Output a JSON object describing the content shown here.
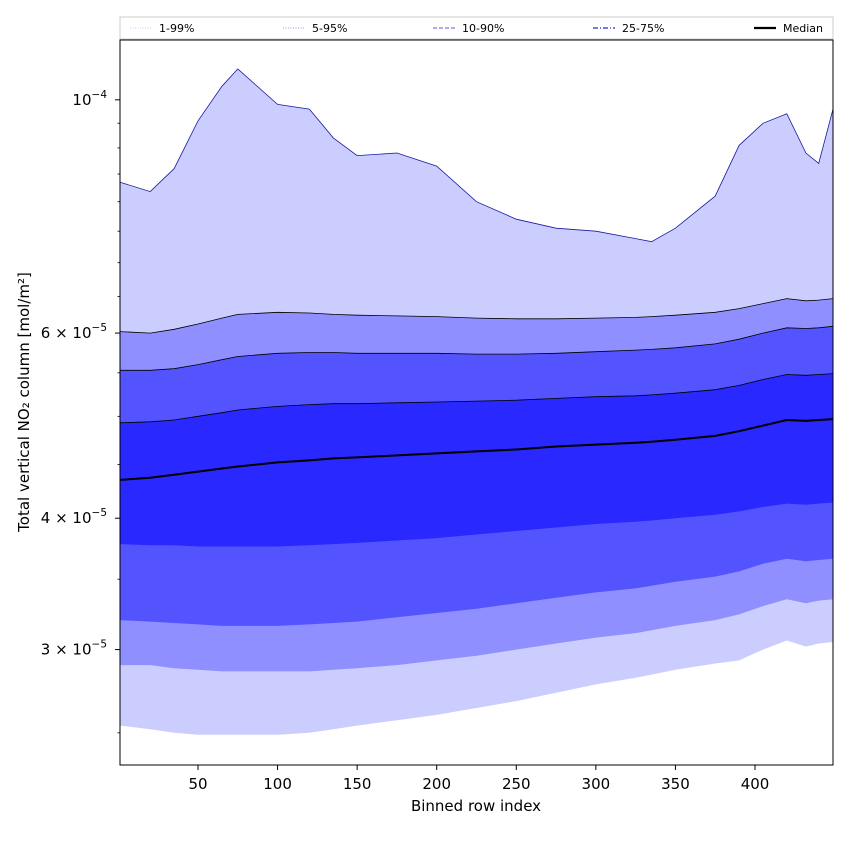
{
  "chart_data": {
    "type": "area",
    "xlabel": "Binned row index",
    "ylabel": "Total vertical NO₂ column [mol/m²]",
    "yscale": "log",
    "xlim": [
      1,
      449
    ],
    "ylim": [
      2.33e-05,
      0.000114
    ],
    "grid": false,
    "legend_position": "top (horizontal strip above plot)",
    "x_tick_labels": [
      "50",
      "100",
      "150",
      "200",
      "250",
      "300",
      "350",
      "400"
    ],
    "x_ticks": [
      50,
      100,
      150,
      200,
      250,
      300,
      350,
      400
    ],
    "y_tick_labels": [
      {
        "value": 0.0001,
        "base": "10",
        "exp": "−4"
      },
      {
        "value": 6e-05,
        "base": "6 × 10",
        "exp": "−5"
      },
      {
        "value": 4e-05,
        "base": "4 × 10",
        "exp": "−5"
      },
      {
        "value": 3e-05,
        "base": "3 × 10",
        "exp": "−5"
      }
    ],
    "legend": [
      {
        "label": "1-99%",
        "style": "dotted",
        "color": "#c8c8f0"
      },
      {
        "label": "5-95%",
        "style": "dotted",
        "color": "#9a9ae0"
      },
      {
        "label": "10-90%",
        "style": "dashed",
        "color": "#7a7ae8"
      },
      {
        "label": "25-75%",
        "style": "dashdot",
        "color": "#4a4ae0"
      },
      {
        "label": "Median",
        "style": "solid",
        "color": "#000000"
      }
    ],
    "band_colors": {
      "p1_99": "#cccdff",
      "p5_95": "#8f8fff",
      "p10_90": "#5454ff",
      "p25_75": "#2828ff",
      "median": "#000000",
      "upper_edge": "#1a1aa0"
    },
    "x": [
      1,
      20,
      35,
      50,
      65,
      75,
      100,
      120,
      135,
      150,
      175,
      200,
      225,
      250,
      275,
      300,
      325,
      335,
      350,
      375,
      390,
      405,
      420,
      432,
      440,
      449
    ],
    "series": [
      {
        "name": "1-99%",
        "lower": [
          2.54e-05,
          2.52e-05,
          2.5e-05,
          2.49e-05,
          2.49e-05,
          2.49e-05,
          2.49e-05,
          2.5e-05,
          2.52e-05,
          2.54e-05,
          2.57e-05,
          2.6e-05,
          2.64e-05,
          2.68e-05,
          2.73e-05,
          2.78e-05,
          2.82e-05,
          2.84e-05,
          2.87e-05,
          2.91e-05,
          2.93e-05,
          3e-05,
          3.06e-05,
          3.02e-05,
          3.04e-05,
          3.05e-05
        ],
        "upper": [
          8.35e-05,
          8.18e-05,
          8.6e-05,
          9.55e-05,
          0.000103,
          0.000107,
          9.9e-05,
          9.8e-05,
          9.2e-05,
          8.85e-05,
          8.9e-05,
          8.65e-05,
          8e-05,
          7.7e-05,
          7.55e-05,
          7.5e-05,
          7.38e-05,
          7.33e-05,
          7.55e-05,
          8.1e-05,
          9.05e-05,
          9.5e-05,
          9.7e-05,
          8.9e-05,
          8.7e-05,
          9.8e-05
        ]
      },
      {
        "name": "5-95%",
        "lower": [
          2.9e-05,
          2.9e-05,
          2.88e-05,
          2.87e-05,
          2.86e-05,
          2.86e-05,
          2.86e-05,
          2.86e-05,
          2.87e-05,
          2.88e-05,
          2.9e-05,
          2.93e-05,
          2.96e-05,
          3e-05,
          3.04e-05,
          3.08e-05,
          3.11e-05,
          3.13e-05,
          3.16e-05,
          3.2e-05,
          3.24e-05,
          3.3e-05,
          3.35e-05,
          3.32e-05,
          3.34e-05,
          3.35e-05
        ],
        "upper": [
          6.02e-05,
          6e-05,
          6.05e-05,
          6.12e-05,
          6.2e-05,
          6.25e-05,
          6.28e-05,
          6.27e-05,
          6.25e-05,
          6.24e-05,
          6.23e-05,
          6.22e-05,
          6.2e-05,
          6.19e-05,
          6.19e-05,
          6.2e-05,
          6.21e-05,
          6.22e-05,
          6.24e-05,
          6.28e-05,
          6.33e-05,
          6.4e-05,
          6.47e-05,
          6.44e-05,
          6.45e-05,
          6.47e-05
        ]
      },
      {
        "name": "10-90%",
        "lower": [
          3.2e-05,
          3.19e-05,
          3.18e-05,
          3.17e-05,
          3.16e-05,
          3.16e-05,
          3.16e-05,
          3.17e-05,
          3.18e-05,
          3.19e-05,
          3.22e-05,
          3.25e-05,
          3.28e-05,
          3.32e-05,
          3.36e-05,
          3.4e-05,
          3.43e-05,
          3.45e-05,
          3.48e-05,
          3.52e-05,
          3.56e-05,
          3.62e-05,
          3.66e-05,
          3.64e-05,
          3.65e-05,
          3.66e-05
        ],
        "upper": [
          5.53e-05,
          5.53e-05,
          5.55e-05,
          5.6e-05,
          5.66e-05,
          5.7e-05,
          5.74e-05,
          5.75e-05,
          5.75e-05,
          5.74e-05,
          5.74e-05,
          5.74e-05,
          5.73e-05,
          5.73e-05,
          5.74e-05,
          5.76e-05,
          5.78e-05,
          5.79e-05,
          5.81e-05,
          5.86e-05,
          5.92e-05,
          6e-05,
          6.07e-05,
          6.06e-05,
          6.07e-05,
          6.09e-05
        ]
      },
      {
        "name": "25-75%",
        "lower": [
          3.78e-05,
          3.77e-05,
          3.77e-05,
          3.76e-05,
          3.76e-05,
          3.76e-05,
          3.76e-05,
          3.77e-05,
          3.78e-05,
          3.79e-05,
          3.81e-05,
          3.83e-05,
          3.86e-05,
          3.89e-05,
          3.92e-05,
          3.95e-05,
          3.97e-05,
          3.98e-05,
          4e-05,
          4.03e-05,
          4.06e-05,
          4.1e-05,
          4.13e-05,
          4.12e-05,
          4.13e-05,
          4.14e-05
        ],
        "upper": [
          4.93e-05,
          4.94e-05,
          4.96e-05,
          5e-05,
          5.04e-05,
          5.07e-05,
          5.11e-05,
          5.13e-05,
          5.14e-05,
          5.14e-05,
          5.15e-05,
          5.16e-05,
          5.17e-05,
          5.18e-05,
          5.2e-05,
          5.22e-05,
          5.23e-05,
          5.24e-05,
          5.26e-05,
          5.3e-05,
          5.35e-05,
          5.42e-05,
          5.48e-05,
          5.47e-05,
          5.48e-05,
          5.49e-05
        ]
      },
      {
        "name": "Median",
        "values": [
          4.35e-05,
          4.37e-05,
          4.4e-05,
          4.43e-05,
          4.46e-05,
          4.48e-05,
          4.52e-05,
          4.54e-05,
          4.56e-05,
          4.57e-05,
          4.59e-05,
          4.61e-05,
          4.63e-05,
          4.65e-05,
          4.68e-05,
          4.7e-05,
          4.72e-05,
          4.73e-05,
          4.75e-05,
          4.79e-05,
          4.84e-05,
          4.9e-05,
          4.96e-05,
          4.95e-05,
          4.96e-05,
          4.97e-05
        ]
      }
    ]
  }
}
